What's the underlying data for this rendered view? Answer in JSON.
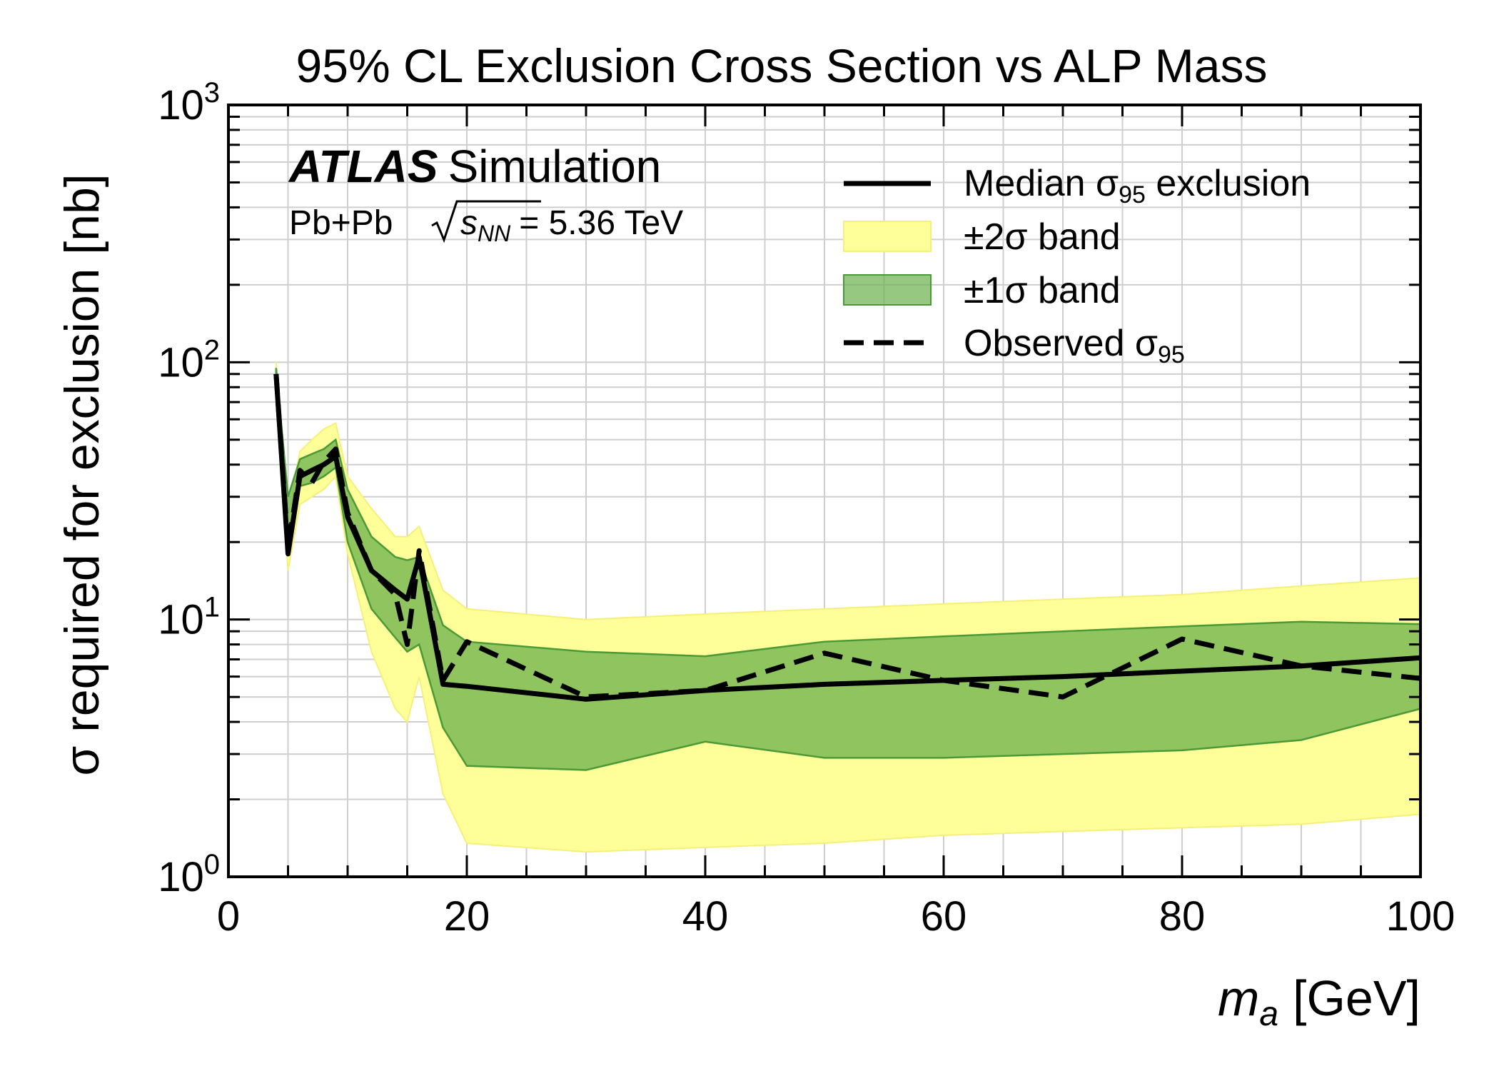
{
  "chart_data": {
    "type": "line",
    "title": "95% CL Exclusion Cross Section vs ALP Mass",
    "xlabel_main": "m",
    "xlabel_sub": "a",
    "xlabel_unit": "[GeV]",
    "ylabel": "σ required for exclusion [nb]",
    "xlim": [
      0,
      100
    ],
    "ylim": [
      1,
      1000
    ],
    "yscale": "log",
    "grid": true,
    "legend_position": "top-right",
    "x_tick_labels": [
      "0",
      "20",
      "40",
      "60",
      "80",
      "100"
    ],
    "y_tick_labels": [
      {
        "base": "10",
        "exp": "0"
      },
      {
        "base": "10",
        "exp": "1"
      },
      {
        "base": "10",
        "exp": "2"
      },
      {
        "base": "10",
        "exp": "3"
      }
    ],
    "experiment_label": {
      "brand": "ATLAS",
      "suffix": "Simulation",
      "system": "Pb+Pb",
      "sqrt_s_symbol": "s",
      "sqrt_s_sub": "NN",
      "energy": "= 5.36 TeV"
    },
    "legend": [
      {
        "key": "median",
        "text": "Median σ",
        "sub": "95",
        "after": " exclusion"
      },
      {
        "key": "band2",
        "text": "±2σ band",
        "sub": "",
        "after": ""
      },
      {
        "key": "band1",
        "text": "±1σ band",
        "sub": "",
        "after": ""
      },
      {
        "key": "observed",
        "text": "Observed σ",
        "sub": "95",
        "after": ""
      }
    ],
    "x": [
      4,
      5,
      6,
      7,
      8,
      9,
      10,
      12,
      14,
      15,
      16,
      18,
      20,
      30,
      40,
      50,
      60,
      70,
      80,
      90,
      100
    ],
    "series": [
      {
        "name": "Median σ95 exclusion",
        "style": "solid",
        "values": [
          90,
          18,
          36,
          38,
          40,
          43,
          25,
          15.5,
          13,
          12,
          17.5,
          5.6,
          5.5,
          4.9,
          5.3,
          5.6,
          5.8,
          6.0,
          6.3,
          6.6,
          7.1
        ]
      },
      {
        "name": "Observed σ95",
        "style": "dashed",
        "values": [
          90,
          19,
          38,
          34,
          41,
          46,
          26,
          15.5,
          12.5,
          8.0,
          18.5,
          5.8,
          8.2,
          5.0,
          5.3,
          7.4,
          5.8,
          5.0,
          8.4,
          6.6,
          5.9
        ]
      }
    ],
    "bands": [
      {
        "name": "±2σ band",
        "color": "#ffff99",
        "low": [
          80,
          15.5,
          28,
          30,
          32,
          36,
          18,
          7.5,
          4.5,
          4.0,
          6.0,
          2.1,
          1.35,
          1.25,
          1.3,
          1.35,
          1.45,
          1.5,
          1.55,
          1.6,
          1.75
        ],
        "high": [
          100,
          25,
          45,
          50,
          55,
          58,
          36,
          27,
          21,
          21,
          23,
          13,
          11,
          10,
          10.5,
          11,
          11.5,
          12,
          12.5,
          13.5,
          14.5
        ]
      },
      {
        "name": "±1σ band",
        "color": "#6ab04c",
        "low": [
          85,
          20,
          33,
          34,
          36,
          39,
          20,
          11,
          8.5,
          7.5,
          8.0,
          3.8,
          2.7,
          2.6,
          3.35,
          2.9,
          2.9,
          3.0,
          3.1,
          3.4,
          4.5
        ],
        "high": [
          95,
          30,
          42,
          44,
          46,
          50,
          32,
          21,
          17.5,
          17,
          17.5,
          9.5,
          8.2,
          7.5,
          7.2,
          8.2,
          8.6,
          9.0,
          9.4,
          9.8,
          9.6
        ]
      }
    ],
    "colors": {
      "median": "#000000",
      "observed": "#000000",
      "band1_fill": "#6ab04c",
      "band1_edge": "#4c9a37",
      "band2_fill": "#ffff99",
      "band2_edge": "#f5f07a",
      "grid": "#cfcfcf"
    }
  }
}
